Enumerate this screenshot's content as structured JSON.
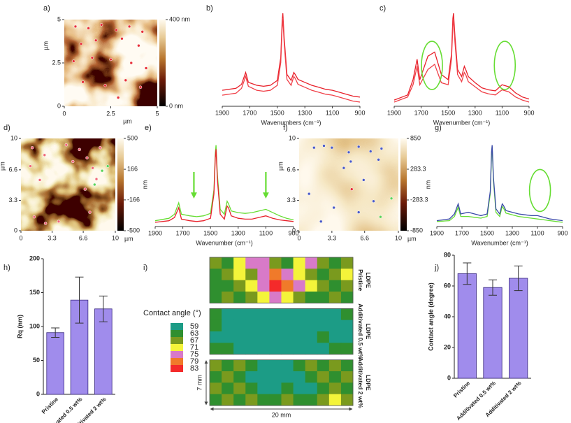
{
  "chart_data": [
    {
      "type": "image",
      "label": "a)",
      "xlim": [
        0,
        5
      ],
      "ylim": [
        0,
        5
      ],
      "xticks": [
        0,
        2.5,
        5
      ],
      "yticks": [
        0,
        2.5,
        5
      ],
      "xlabel": "µm",
      "ylabel": "µm",
      "clim": [
        0,
        400
      ],
      "cbar_ticks": [
        {
          "value": 400,
          "label": "400 nm"
        },
        {
          "value": 0,
          "label": "0 nm"
        }
      ],
      "points": [
        {
          "color": "#e8303a",
          "x": [
            0.6,
            1.3,
            2.0,
            2.8,
            3.5,
            4.2,
            0.9,
            1.7,
            3.1,
            4.0,
            0.5,
            1.5,
            2.5,
            3.6,
            4.4,
            1.0,
            2.2,
            3.3,
            4.1,
            2.9
          ],
          "y": [
            4.6,
            4.5,
            4.7,
            4.4,
            4.6,
            4.3,
            3.6,
            3.8,
            3.9,
            3.5,
            2.6,
            2.8,
            2.7,
            2.5,
            2.2,
            1.4,
            1.2,
            1.5,
            1.1,
            0.5
          ]
        }
      ]
    },
    {
      "type": "line",
      "label": "b)",
      "xlim": [
        1900,
        900
      ],
      "xticks": [
        1900,
        1700,
        1500,
        1300,
        1100,
        900
      ],
      "xlabel": "Wavenumbers (cm⁻¹)",
      "x": [
        1900,
        1800,
        1760,
        1730,
        1710,
        1650,
        1600,
        1550,
        1500,
        1475,
        1465,
        1460,
        1450,
        1430,
        1400,
        1380,
        1370,
        1350,
        1300,
        1250,
        1200,
        1150,
        1100,
        1050,
        1000,
        950,
        900
      ],
      "series": [
        {
          "color": "#e8202a",
          "values": [
            0.22,
            0.24,
            0.28,
            0.4,
            0.3,
            0.27,
            0.26,
            0.27,
            0.32,
            0.55,
            0.92,
            1.0,
            0.75,
            0.38,
            0.32,
            0.4,
            0.38,
            0.33,
            0.3,
            0.27,
            0.25,
            0.23,
            0.22,
            0.2,
            0.18,
            0.16,
            0.15
          ]
        },
        {
          "color": "#f04048",
          "values": [
            0.17,
            0.19,
            0.24,
            0.36,
            0.26,
            0.22,
            0.21,
            0.22,
            0.27,
            0.5,
            0.85,
            0.95,
            0.7,
            0.33,
            0.27,
            0.36,
            0.34,
            0.28,
            0.25,
            0.22,
            0.2,
            0.18,
            0.17,
            0.15,
            0.13,
            0.11,
            0.1
          ]
        }
      ]
    },
    {
      "type": "line",
      "label": "c)",
      "xlim": [
        1900,
        900
      ],
      "xticks": [
        1900,
        1700,
        1500,
        1300,
        1100,
        900
      ],
      "xlabel": "Wavenumber (cm⁻¹)",
      "x": [
        1900,
        1800,
        1760,
        1730,
        1710,
        1650,
        1600,
        1550,
        1500,
        1475,
        1465,
        1460,
        1450,
        1430,
        1400,
        1380,
        1370,
        1350,
        1300,
        1250,
        1200,
        1150,
        1100,
        1050,
        1000,
        950,
        900
      ],
      "series": [
        {
          "color": "#e8202a",
          "values": [
            0.15,
            0.2,
            0.35,
            0.55,
            0.35,
            0.58,
            0.62,
            0.4,
            0.35,
            0.6,
            0.95,
            1.0,
            0.78,
            0.45,
            0.38,
            0.48,
            0.45,
            0.38,
            0.32,
            0.27,
            0.25,
            0.24,
            0.3,
            0.28,
            0.22,
            0.18,
            0.16
          ]
        },
        {
          "color": "#f04048",
          "values": [
            0.13,
            0.18,
            0.3,
            0.48,
            0.3,
            0.45,
            0.5,
            0.32,
            0.3,
            0.55,
            0.88,
            0.94,
            0.72,
            0.4,
            0.33,
            0.42,
            0.4,
            0.33,
            0.28,
            0.23,
            0.21,
            0.2,
            0.25,
            0.23,
            0.18,
            0.15,
            0.13
          ]
        }
      ],
      "highlight_x": [
        1620,
        1080
      ],
      "highlight_color": "#66dd33"
    },
    {
      "type": "image",
      "label": "d)",
      "xlim": [
        0,
        10
      ],
      "ylim": [
        0,
        10
      ],
      "xticks": [
        0,
        3.3,
        6.6,
        10
      ],
      "yticks": [
        0,
        3.3,
        6.6,
        10
      ],
      "xlabel": "µm",
      "ylabel": "µm",
      "clim": [
        -500,
        500
      ],
      "cbar_ticks": [
        500,
        166,
        -166,
        -500
      ],
      "cbar_label": "nm",
      "points": [
        {
          "color": "#f06878",
          "x": [
            1.2,
            2.5,
            4.8,
            5.5,
            6.2,
            7.0,
            7.6,
            8.4,
            8.0,
            1.0,
            2.0,
            6.8,
            7.3,
            4.0,
            1.4,
            2.6
          ],
          "y": [
            9.0,
            8.2,
            9.3,
            7.5,
            8.8,
            7.9,
            6.8,
            9.0,
            5.6,
            7.0,
            5.5,
            4.5,
            2.0,
            1.0,
            1.5,
            0.8
          ]
        },
        {
          "color": "#5ad45a",
          "x": [
            8.6,
            9.2,
            7.8
          ],
          "y": [
            6.5,
            7.0,
            5.0
          ]
        }
      ]
    },
    {
      "type": "line",
      "label": "e)",
      "xlim": [
        1900,
        900
      ],
      "xticks": [
        1900,
        1700,
        1500,
        1300,
        1100,
        900
      ],
      "xlabel": "Wavenumber (cm⁻¹)",
      "x": [
        1900,
        1800,
        1760,
        1730,
        1710,
        1650,
        1600,
        1550,
        1500,
        1475,
        1465,
        1460,
        1450,
        1430,
        1400,
        1380,
        1370,
        1350,
        1300,
        1250,
        1200,
        1150,
        1100,
        1050,
        1000,
        950,
        900
      ],
      "series": [
        {
          "color": "#66dd33",
          "values": [
            0.12,
            0.15,
            0.2,
            0.34,
            0.2,
            0.18,
            0.17,
            0.18,
            0.21,
            0.5,
            0.95,
            1.05,
            0.68,
            0.26,
            0.2,
            0.36,
            0.33,
            0.24,
            0.22,
            0.21,
            0.22,
            0.24,
            0.26,
            0.22,
            0.18,
            0.15,
            0.13
          ]
        },
        {
          "color": "#e8202a",
          "values": [
            0.1,
            0.12,
            0.16,
            0.28,
            0.14,
            0.12,
            0.11,
            0.12,
            0.15,
            0.45,
            0.9,
            1.0,
            0.62,
            0.2,
            0.14,
            0.3,
            0.28,
            0.18,
            0.15,
            0.14,
            0.14,
            0.16,
            0.18,
            0.15,
            0.13,
            0.12,
            0.11
          ]
        }
      ],
      "arrows_x": [
        1620,
        1100
      ],
      "highlight_color": "#66dd33"
    },
    {
      "type": "image",
      "label": "f)",
      "xlim": [
        0,
        10
      ],
      "ylim": [
        0,
        10
      ],
      "xticks": [
        0,
        3.3,
        6.6,
        10
      ],
      "yticks": [
        0,
        3.3,
        6.6,
        10
      ],
      "xlabel": "µm",
      "ylabel": "µm",
      "clim": [
        -850,
        850
      ],
      "cbar_ticks": [
        850,
        283.3,
        -283.3,
        -850
      ],
      "cbar_label": "nm",
      "points": [
        {
          "color": "#4a5ac8",
          "x": [
            1.5,
            2.5,
            3.3,
            5.0,
            6.0,
            7.2,
            8.3,
            8.0,
            4.5,
            5.2,
            6.5,
            7.5,
            1.0,
            3.5,
            6.0,
            2.2
          ],
          "y": [
            9.0,
            9.2,
            9.0,
            8.5,
            9.1,
            8.6,
            8.9,
            7.7,
            6.8,
            7.5,
            5.5,
            3.2,
            4.0,
            2.5,
            2.0,
            1.0
          ]
        },
        {
          "color": "#5ad45a",
          "x": [
            8.2,
            9.3
          ],
          "y": [
            1.5,
            3.5
          ]
        },
        {
          "color": "#e8303a",
          "x": [
            5.3
          ],
          "y": [
            4.5
          ]
        }
      ]
    },
    {
      "type": "line",
      "label": "g)",
      "xlim": [
        1900,
        900
      ],
      "xticks": [
        1900,
        1700,
        1500,
        1300,
        1100,
        900
      ],
      "xlabel": "Wavenumber (cm⁻¹)",
      "x": [
        1900,
        1800,
        1760,
        1730,
        1710,
        1650,
        1600,
        1550,
        1500,
        1475,
        1465,
        1460,
        1450,
        1430,
        1400,
        1380,
        1370,
        1350,
        1300,
        1250,
        1200,
        1150,
        1100,
        1050,
        1000,
        950,
        900
      ],
      "series": [
        {
          "color": "#66dd33",
          "values": [
            0.09,
            0.1,
            0.15,
            0.26,
            0.15,
            0.15,
            0.14,
            0.13,
            0.15,
            0.42,
            0.88,
            0.98,
            0.58,
            0.2,
            0.15,
            0.27,
            0.25,
            0.19,
            0.17,
            0.15,
            0.14,
            0.13,
            0.12,
            0.11,
            0.1,
            0.09,
            0.08
          ]
        },
        {
          "color": "#3a4aa8",
          "values": [
            0.1,
            0.12,
            0.18,
            0.3,
            0.18,
            0.2,
            0.18,
            0.16,
            0.18,
            0.45,
            0.92,
            1.0,
            0.62,
            0.24,
            0.18,
            0.3,
            0.28,
            0.22,
            0.2,
            0.18,
            0.17,
            0.16,
            0.16,
            0.14,
            0.12,
            0.11,
            0.1
          ]
        }
      ],
      "highlight_x": [
        1080
      ],
      "highlight_color": "#66dd33"
    },
    {
      "type": "bar",
      "label": "h)",
      "ylabel": "Rq (nm)",
      "categories": [
        "Pristine",
        "Additivated 0.5 wt%",
        "Additivated 2 wt%"
      ],
      "values": [
        91,
        139,
        126
      ],
      "errors": [
        7,
        34,
        19
      ],
      "color": "#a08cec",
      "ylim": [
        0,
        200
      ],
      "yticks": [
        0,
        50,
        100,
        150,
        200
      ]
    },
    {
      "type": "contour",
      "label": "i)",
      "legend_title": "Contact angle (°)",
      "width_label": "20 mm",
      "height_label": "7 mm",
      "levels": [
        {
          "value": 59,
          "color": "#1c9c86"
        },
        {
          "value": 63,
          "color": "#2f8f2f"
        },
        {
          "value": 67,
          "color": "#7a9a1e"
        },
        {
          "value": 71,
          "color": "#f4f43a"
        },
        {
          "value": 75,
          "color": "#d87ac8"
        },
        {
          "value": 79,
          "color": "#f07a2a"
        },
        {
          "value": 83,
          "color": "#f42a2a"
        }
      ],
      "maps": [
        {
          "label": [
            "Pristine",
            "LDPE"
          ],
          "values": [
            [
              67,
              63,
              71,
              75,
              75,
              67,
              63,
              71,
              75,
              67,
              63,
              67
            ],
            [
              63,
              67,
              71,
              67,
              75,
              79,
              75,
              71,
              67,
              63,
              67,
              71
            ],
            [
              63,
              63,
              67,
              71,
              75,
              83,
              79,
              75,
              71,
              67,
              63,
              67
            ],
            [
              63,
              67,
              63,
              67,
              71,
              75,
              71,
              67,
              63,
              63,
              67,
              63
            ]
          ]
        },
        {
          "label": [
            "Additivated 0.5 wt%",
            "LDPE"
          ],
          "values": [
            [
              63,
              59,
              59,
              59,
              59,
              59,
              59,
              59,
              59,
              59,
              59,
              63
            ],
            [
              63,
              59,
              59,
              59,
              59,
              59,
              59,
              59,
              59,
              59,
              59,
              59
            ],
            [
              59,
              59,
              59,
              59,
              59,
              59,
              59,
              59,
              59,
              63,
              59,
              59
            ],
            [
              63,
              63,
              59,
              59,
              59,
              59,
              59,
              59,
              59,
              59,
              63,
              63
            ]
          ]
        },
        {
          "label": [
            "Additivated 2 wt%",
            "LDPE"
          ],
          "values": [
            [
              67,
              63,
              67,
              63,
              59,
              59,
              59,
              63,
              67,
              63,
              67,
              63
            ],
            [
              63,
              67,
              63,
              59,
              59,
              59,
              59,
              59,
              63,
              67,
              63,
              67
            ],
            [
              67,
              63,
              67,
              63,
              59,
              59,
              63,
              59,
              59,
              63,
              67,
              63
            ],
            [
              63,
              67,
              63,
              67,
              63,
              63,
              67,
              63,
              63,
              67,
              71,
              67
            ]
          ]
        }
      ]
    },
    {
      "type": "bar",
      "label": "j)",
      "ylabel": "Contact angle (degree)",
      "categories": [
        "Pristine",
        "Additivated 0.5 wt%",
        "Additivated 2 wt%"
      ],
      "values": [
        68,
        59,
        65
      ],
      "errors": [
        7,
        5,
        8
      ],
      "color": "#a08cec",
      "ylim": [
        0,
        80
      ],
      "yticks": [
        0,
        20,
        40,
        60,
        80
      ]
    }
  ]
}
